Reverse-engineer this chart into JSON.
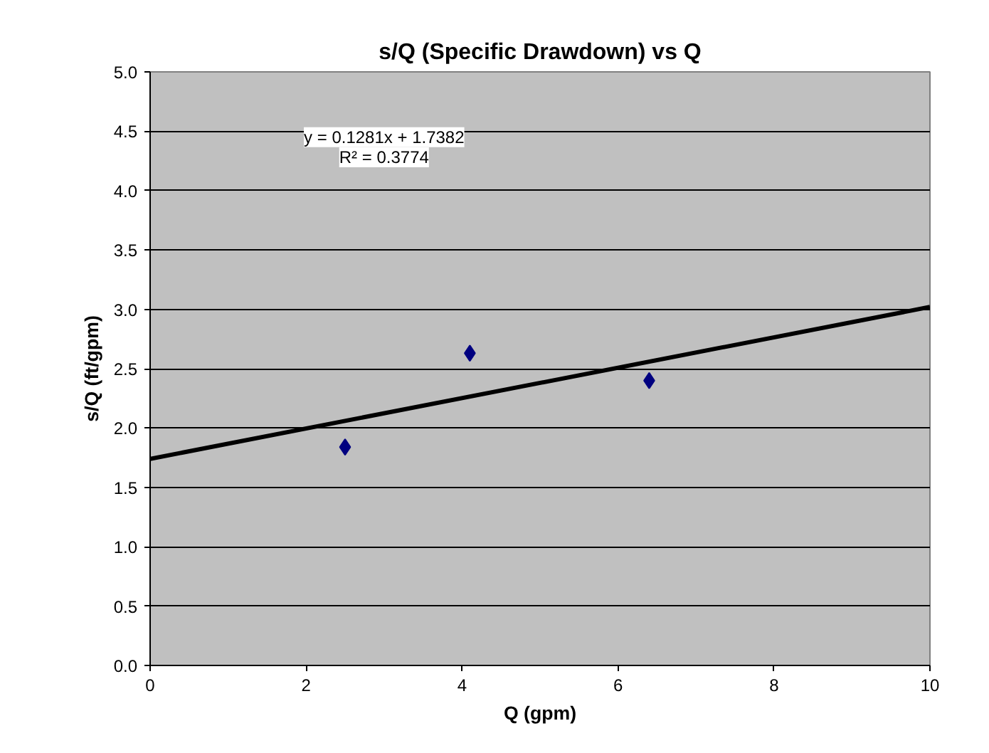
{
  "chart_data": {
    "type": "scatter",
    "title": "s/Q (Specific Drawdown) vs Q",
    "xlabel": "Q (gpm)",
    "ylabel": "s/Q (ft/gpm)",
    "series": [
      {
        "color": "#000080",
        "x": [
          2.5,
          4.1,
          6.4
        ],
        "values": [
          1.84,
          2.63,
          2.4
        ],
        "marker": "diamond"
      },
      {
        "type": "line",
        "color": "#000000",
        "x": [
          0,
          10
        ],
        "values": [
          1.74,
          3.02
        ],
        "line_style": "solid"
      }
    ],
    "annotations": [
      "y = 0.1281x + 1.7382",
      "R² = 0.3774"
    ],
    "xlim": [
      0,
      10
    ],
    "xticks": [
      0,
      2,
      4,
      6,
      8,
      10
    ],
    "ylim": [
      0,
      5
    ],
    "yticks": [
      {
        "value": 0,
        "label": "0.0"
      },
      0.5,
      {
        "value": 1,
        "label": "1.0"
      },
      1.5,
      {
        "value": 2,
        "label": "2.0"
      },
      2.5,
      {
        "value": 3,
        "label": "3.0"
      },
      3.5,
      {
        "value": 4,
        "label": "4.0"
      },
      4.5,
      {
        "value": 5,
        "label": "5.0"
      }
    ],
    "grid": "y"
  }
}
